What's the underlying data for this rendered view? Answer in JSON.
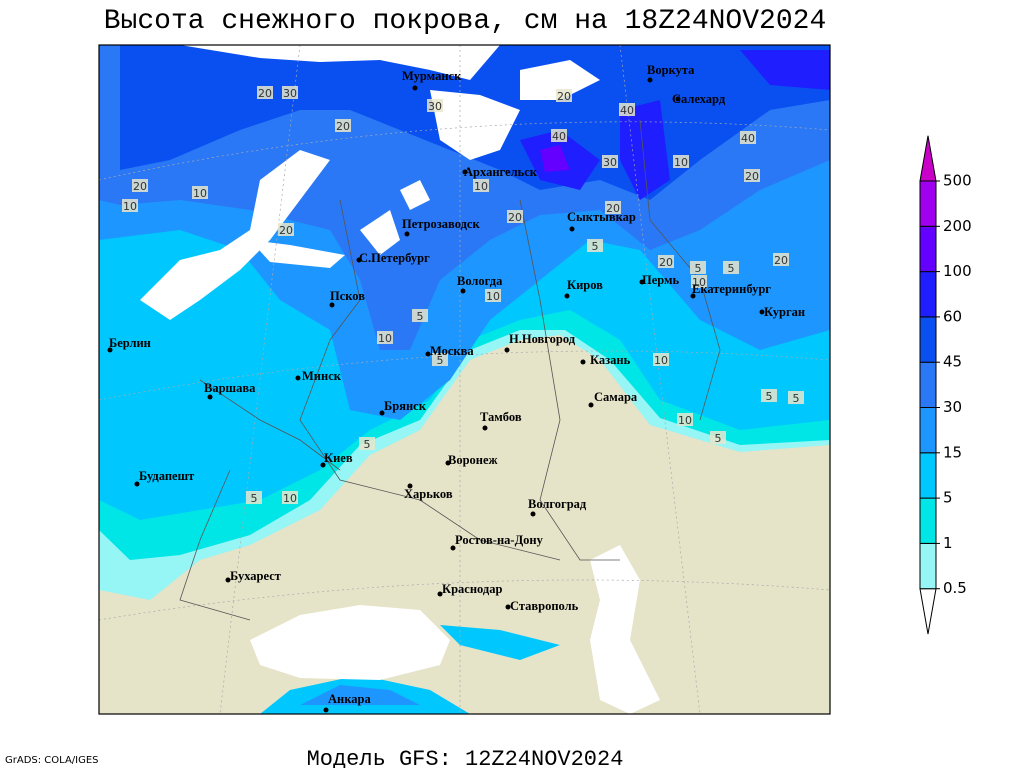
{
  "title": "Высота снежного покрова, см на 18Z24NOV2024",
  "footer": {
    "model": "Модель GFS: 12Z24NOV2024",
    "credit": "GrADS: COLA/IGES"
  },
  "colorbar": {
    "levels": [
      0.5,
      1,
      5,
      15,
      30,
      45,
      60,
      100,
      200,
      500
    ],
    "colors": [
      "#ffffff",
      "#96f5f5",
      "#00e6e6",
      "#00c8ff",
      "#1e96ff",
      "#2a78f5",
      "#0a50f0",
      "#1e1eff",
      "#6400ff",
      "#a000f0",
      "#c800c8"
    ]
  },
  "cities": [
    "Мурманск",
    "Воркута",
    "Салехард",
    "Архангельск",
    "Сыктывкар",
    "Петрозаводск",
    "С.Петербург",
    "Вологда",
    "Киров",
    "Пермь",
    "Екатеринбург",
    "Курган",
    "Псков",
    "Берлин",
    "Н.Новгород",
    "Казань",
    "Москва",
    "Варшава",
    "Минск",
    "Самара",
    "Брянск",
    "Тамбов",
    "Киев",
    "Воронеж",
    "Будапешт",
    "Харьков",
    "Волгоград",
    "Ростов-на-Дону",
    "Бухарест",
    "Краснодар",
    "Ставрополь",
    "Анкара"
  ],
  "contour_labels": [
    20,
    30,
    20,
    30,
    40,
    30,
    40,
    20,
    40,
    20,
    10,
    20,
    10,
    10,
    20,
    10,
    20,
    20,
    5,
    20,
    10,
    20,
    5,
    5,
    10,
    5,
    10,
    5,
    10,
    5,
    5,
    5,
    5,
    10,
    5,
    10
  ]
}
